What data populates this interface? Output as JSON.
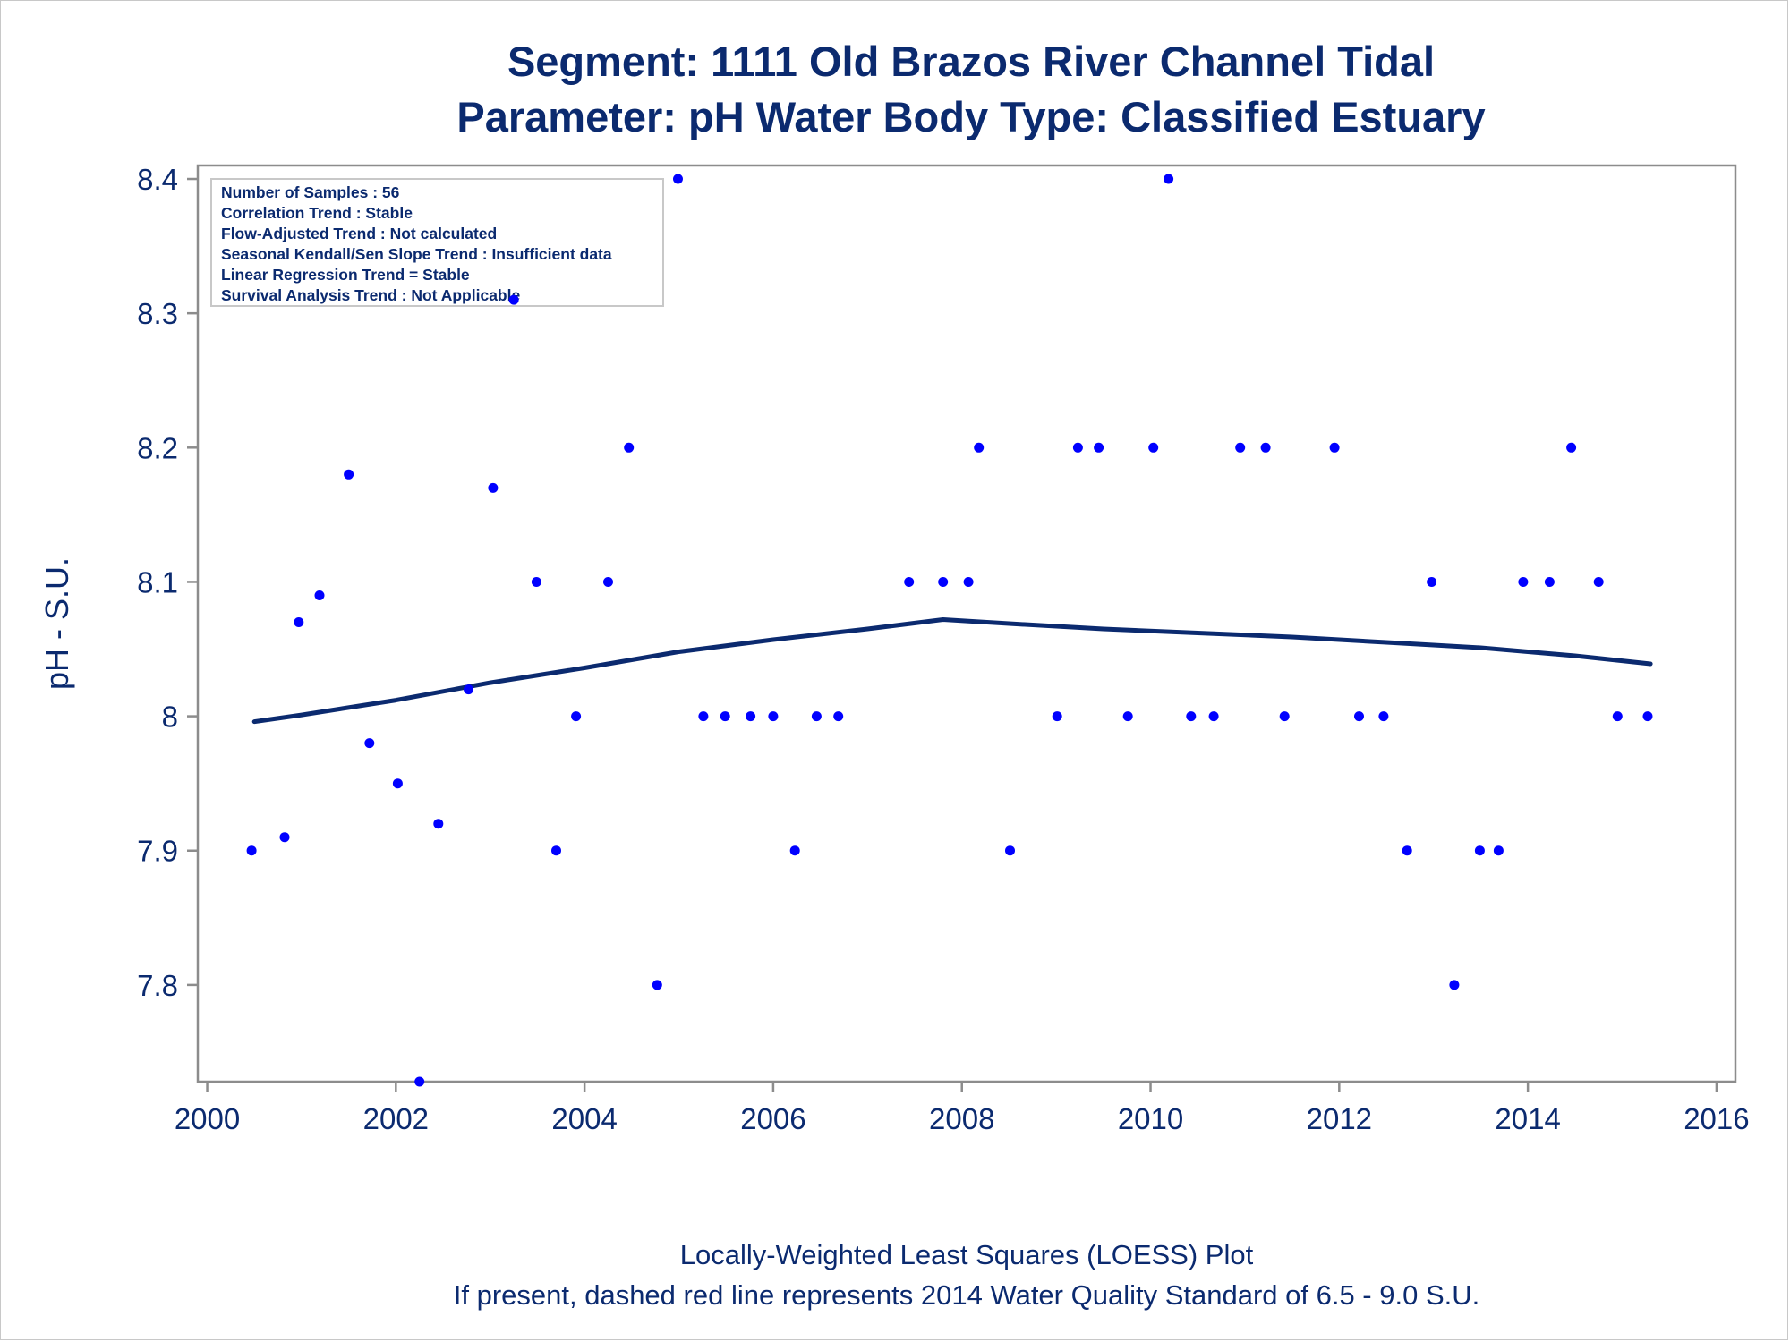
{
  "chart_data": {
    "type": "scatter",
    "title": "Segment: 1111  Old Brazos River Channel Tidal",
    "subtitle": "Parameter: pH   Water Body Type: Classified Estuary",
    "xlabel": "",
    "ylabel": "pH - S.U.",
    "xlim": [
      1999.9,
      2016.2
    ],
    "ylim": [
      7.728,
      8.41
    ],
    "xticks": [
      2000,
      2002,
      2004,
      2006,
      2008,
      2010,
      2012,
      2014,
      2016
    ],
    "yticks": [
      7.8,
      7.9,
      8,
      8.1,
      8.2,
      8.3,
      8.4
    ],
    "ytick_labels": [
      "7.8",
      "7.9",
      "8",
      "8.1",
      "8.2",
      "8.3",
      "8.4"
    ],
    "grid": false,
    "colors": {
      "points": "#0000ff",
      "trend_line": "#0b2a6f",
      "text": "#0b2a6f",
      "axis": "#8c8c8c"
    },
    "series": [
      {
        "kind": "points",
        "x": [
          2000.47,
          2000.82,
          2000.97,
          2001.19,
          2001.5,
          2001.72,
          2002.02,
          2002.25,
          2002.45,
          2002.77,
          2003.03,
          2003.25,
          2003.49,
          2003.7,
          2003.91,
          2004.25,
          2004.47,
          2004.77,
          2004.99,
          2005.26,
          2005.49,
          2005.76,
          2006.0,
          2006.23,
          2006.46,
          2006.69,
          2007.44,
          2007.8,
          2008.07,
          2008.18,
          2008.51,
          2009.01,
          2009.23,
          2009.45,
          2009.76,
          2010.03,
          2010.19,
          2010.43,
          2010.67,
          2010.95,
          2011.22,
          2011.42,
          2011.95,
          2012.21,
          2012.47,
          2012.72,
          2012.98,
          2013.22,
          2013.49,
          2013.69,
          2013.95,
          2014.23,
          2014.46,
          2014.75,
          2014.95,
          2015.27
        ],
        "y": [
          7.9,
          7.91,
          8.07,
          8.09,
          8.18,
          7.98,
          7.95,
          7.728,
          7.92,
          8.02,
          8.17,
          8.31,
          8.1,
          7.9,
          8.0,
          8.1,
          8.2,
          7.8,
          8.4,
          8.0,
          8.0,
          8.0,
          8.0,
          7.9,
          8.0,
          8.0,
          8.1,
          8.1,
          8.1,
          8.2,
          7.9,
          8.0,
          8.2,
          8.2,
          8.0,
          8.2,
          8.4,
          8.0,
          8.0,
          8.2,
          8.2,
          8.0,
          8.2,
          8.0,
          8.0,
          7.9,
          8.1,
          7.8,
          7.9,
          7.9,
          8.1,
          8.1,
          8.2,
          8.1,
          8.0,
          8.0
        ]
      },
      {
        "kind": "loess-line",
        "x": [
          2000.5,
          2001.0,
          2002.0,
          2003.0,
          2004.0,
          2005.0,
          2006.0,
          2007.0,
          2007.8,
          2008.5,
          2009.5,
          2010.5,
          2011.5,
          2012.5,
          2013.5,
          2014.5,
          2015.3
        ],
        "y": [
          7.996,
          8.001,
          8.012,
          8.025,
          8.036,
          8.048,
          8.057,
          8.065,
          8.072,
          8.069,
          8.065,
          8.062,
          8.059,
          8.055,
          8.051,
          8.045,
          8.039
        ]
      }
    ],
    "legend_placement": "top-left inset",
    "inset_lines": [
      "Number of Samples : 56",
      "Correlation Trend : Stable",
      "Flow-Adjusted Trend : Not calculated",
      "Seasonal Kendall/Sen Slope Trend : Insufficient data",
      "Linear Regression Trend = Stable",
      "Survival Analysis Trend : Not Applicable"
    ],
    "footnotes": [
      "Locally-Weighted Least Squares (LOESS) Plot",
      "If present, dashed red line represents 2014 Water Quality Standard of 6.5 - 9.0 S.U."
    ]
  }
}
